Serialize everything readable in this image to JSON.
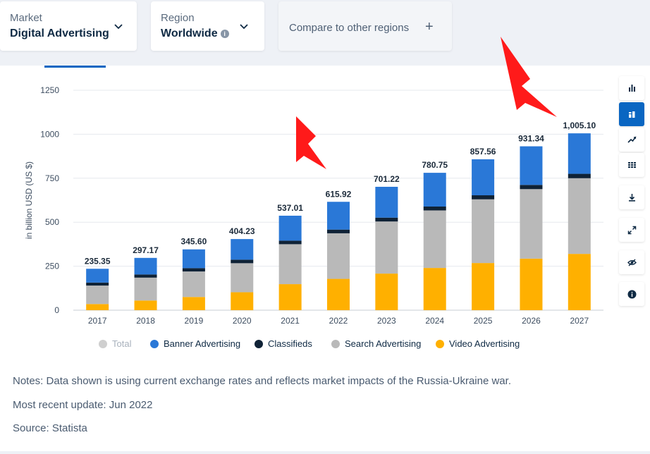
{
  "filters": {
    "market": {
      "label": "Market",
      "value": "Digital Advertising"
    },
    "region": {
      "label": "Region",
      "value": "Worldwide"
    },
    "compare_label": "Compare to other regions"
  },
  "toolbar": {
    "icons": [
      "bar-chart-icon",
      "stacked-bar-icon",
      "line-chart-icon",
      "table-icon",
      "download-icon",
      "fullscreen-icon",
      "hide-icon",
      "info-icon"
    ],
    "active_index": 1
  },
  "chart_data": {
    "type": "bar",
    "stacked": true,
    "ylabel": "in billion USD (US $)",
    "xlabel": "",
    "ylim": [
      0,
      1250
    ],
    "yticks": [
      0,
      250,
      500,
      750,
      1000,
      1250
    ],
    "grid": true,
    "legend_position": "bottom",
    "categories": [
      "2017",
      "2018",
      "2019",
      "2020",
      "2021",
      "2022",
      "2023",
      "2024",
      "2025",
      "2026",
      "2027"
    ],
    "totals": [
      "235.35",
      "297.17",
      "345.60",
      "404.23",
      "537.01",
      "615.92",
      "701.22",
      "780.75",
      "857.56",
      "931.34",
      "1,005.10"
    ],
    "series": [
      {
        "name": "Video Advertising",
        "color": "#ffb000",
        "values": [
          35,
          55,
          75,
          102,
          148,
          178,
          208,
          240,
          268,
          293,
          320
        ]
      },
      {
        "name": "Search Advertising",
        "color": "#b9b9b9",
        "values": [
          105,
          130,
          145,
          165,
          227,
          259,
          296,
          327,
          362,
          395,
          430
        ]
      },
      {
        "name": "Classifieds",
        "color": "#0f2236",
        "values": [
          17,
          18,
          19,
          20,
          20,
          21,
          22,
          22,
          23,
          24,
          25
        ]
      },
      {
        "name": "Banner Advertising",
        "color": "#2a78d7",
        "values": [
          78.35,
          94.17,
          106.6,
          117.23,
          142.01,
          157.92,
          175.22,
          191.75,
          204.56,
          219.34,
          230.1
        ]
      }
    ]
  },
  "legend": [
    {
      "label": "Total",
      "color": "#cfcfcf",
      "muted": true
    },
    {
      "label": "Banner Advertising",
      "color": "#2a78d7",
      "muted": false
    },
    {
      "label": "Classifieds",
      "color": "#0f2236",
      "muted": false
    },
    {
      "label": "Search Advertising",
      "color": "#b9b9b9",
      "muted": false
    },
    {
      "label": "Video Advertising",
      "color": "#ffb000",
      "muted": false
    }
  ],
  "notes": {
    "notes_text": "Notes: Data shown is using current exchange rates and reflects market impacts of the Russia-Ukraine war.",
    "update_text": "Most recent update: Jun 2022",
    "source_text": "Source: Statista"
  },
  "annotation_color": "#ff1a1a"
}
